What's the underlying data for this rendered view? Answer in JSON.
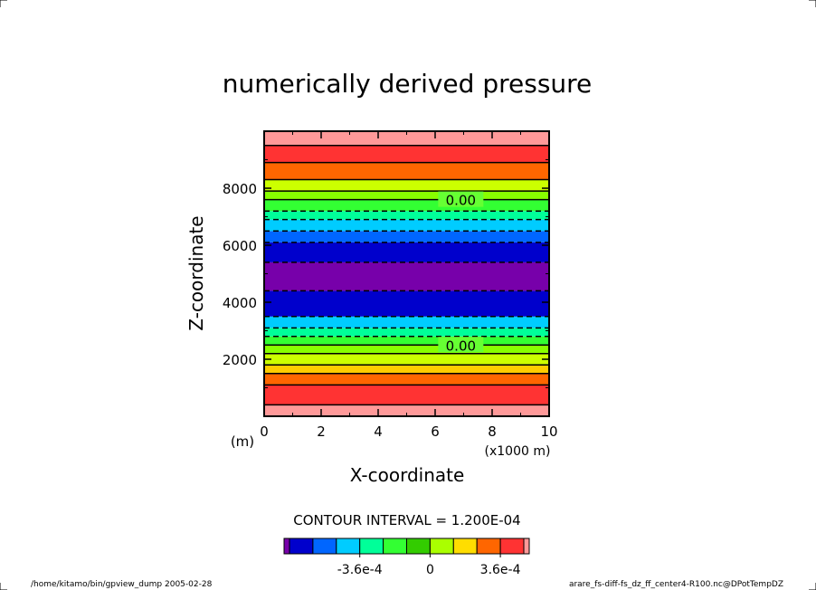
{
  "title": "numerically derived pressure",
  "contour_interval_label": "CONTOUR INTERVAL = 1.200E-04",
  "footer_left": "/home/kitamo/bin/gpview_dump  2005-02-28",
  "footer_right": "arare_fs-diff-fs_dz_ff_center4-R100.nc@DPotTempDZ",
  "chart_data": {
    "type": "heatmap",
    "title": "numerically derived pressure",
    "xlabel": "X-coordinate",
    "ylabel": "Z-coordinate",
    "x_unit_label": "(x1000 m)",
    "y_unit_label": "(m)",
    "xlim": [
      0,
      10
    ],
    "ylim": [
      0,
      10000
    ],
    "x_ticks": [
      "0",
      "2",
      "4",
      "6",
      "8",
      "10"
    ],
    "y_ticks": [
      "2000",
      "4000",
      "6000",
      "8000"
    ],
    "x_tick_values": [
      0,
      2,
      4,
      6,
      8,
      10
    ],
    "y_tick_values": [
      2000,
      4000,
      6000,
      8000
    ],
    "contour_interval": 0.00012,
    "field_varies_with": "Z only (horizontally uniform bands)",
    "bands": [
      {
        "z_min": 0,
        "z_max": 400,
        "color": "#ff9999"
      },
      {
        "z_min": 400,
        "z_max": 1100,
        "color": "#ff3333"
      },
      {
        "z_min": 1100,
        "z_max": 1500,
        "color": "#ff6600"
      },
      {
        "z_min": 1500,
        "z_max": 1800,
        "color": "#ffcc00"
      },
      {
        "z_min": 1800,
        "z_max": 2200,
        "color": "#ccff00"
      },
      {
        "z_min": 2200,
        "z_max": 2500,
        "color": "#88ff00"
      },
      {
        "z_min": 2500,
        "z_max": 2800,
        "color": "#33ff33"
      },
      {
        "z_min": 2800,
        "z_max": 3100,
        "color": "#00ff99"
      },
      {
        "z_min": 3100,
        "z_max": 3500,
        "color": "#00ccff"
      },
      {
        "z_min": 3500,
        "z_max": 4400,
        "color": "#0000cc"
      },
      {
        "z_min": 4400,
        "z_max": 5400,
        "color": "#7700aa"
      },
      {
        "z_min": 5400,
        "z_max": 6100,
        "color": "#0000cc"
      },
      {
        "z_min": 6100,
        "z_max": 6500,
        "color": "#0066ff"
      },
      {
        "z_min": 6500,
        "z_max": 6900,
        "color": "#00ccff"
      },
      {
        "z_min": 6900,
        "z_max": 7200,
        "color": "#00ff99"
      },
      {
        "z_min": 7200,
        "z_max": 7600,
        "color": "#33ff33"
      },
      {
        "z_min": 7600,
        "z_max": 7900,
        "color": "#88ff00"
      },
      {
        "z_min": 7900,
        "z_max": 8300,
        "color": "#ccff00"
      },
      {
        "z_min": 8300,
        "z_max": 8900,
        "color": "#ff6600"
      },
      {
        "z_min": 8900,
        "z_max": 9500,
        "color": "#ff3333"
      },
      {
        "z_min": 9500,
        "z_max": 10000,
        "color": "#ff9999"
      }
    ],
    "contour_lines": [
      {
        "z": 400,
        "style": "solid"
      },
      {
        "z": 1100,
        "style": "solid"
      },
      {
        "z": 1500,
        "style": "solid"
      },
      {
        "z": 1800,
        "style": "solid"
      },
      {
        "z": 2200,
        "style": "solid"
      },
      {
        "z": 2500,
        "style": "solid"
      },
      {
        "z": 2500,
        "style": "solid"
      },
      {
        "z": 2800,
        "style": "dashed"
      },
      {
        "z": 3100,
        "style": "dashed"
      },
      {
        "z": 3500,
        "style": "dashed"
      },
      {
        "z": 4400,
        "style": "dashed"
      },
      {
        "z": 5400,
        "style": "dashed"
      },
      {
        "z": 6100,
        "style": "dashed"
      },
      {
        "z": 6500,
        "style": "dashed"
      },
      {
        "z": 6900,
        "style": "dashed"
      },
      {
        "z": 7200,
        "style": "dashed"
      },
      {
        "z": 7600,
        "style": "solid"
      },
      {
        "z": 7900,
        "style": "solid"
      },
      {
        "z": 8300,
        "style": "solid"
      },
      {
        "z": 8900,
        "style": "solid"
      },
      {
        "z": 9500,
        "style": "solid"
      }
    ],
    "contour_labels": [
      {
        "text": "0.00",
        "x": 6.9,
        "z": 2500
      },
      {
        "text": "0.00",
        "x": 6.9,
        "z": 7600
      }
    ],
    "colorbar": {
      "colors": [
        "#7700aa",
        "#0000cc",
        "#0066ff",
        "#00ccff",
        "#00ff99",
        "#33ff33",
        "#33cc00",
        "#aaff00",
        "#ffdd00",
        "#ff6600",
        "#ff3333",
        "#ff9999"
      ],
      "tick_labels": [
        "-3.6e-4",
        "0",
        "3.6e-4"
      ]
    }
  }
}
